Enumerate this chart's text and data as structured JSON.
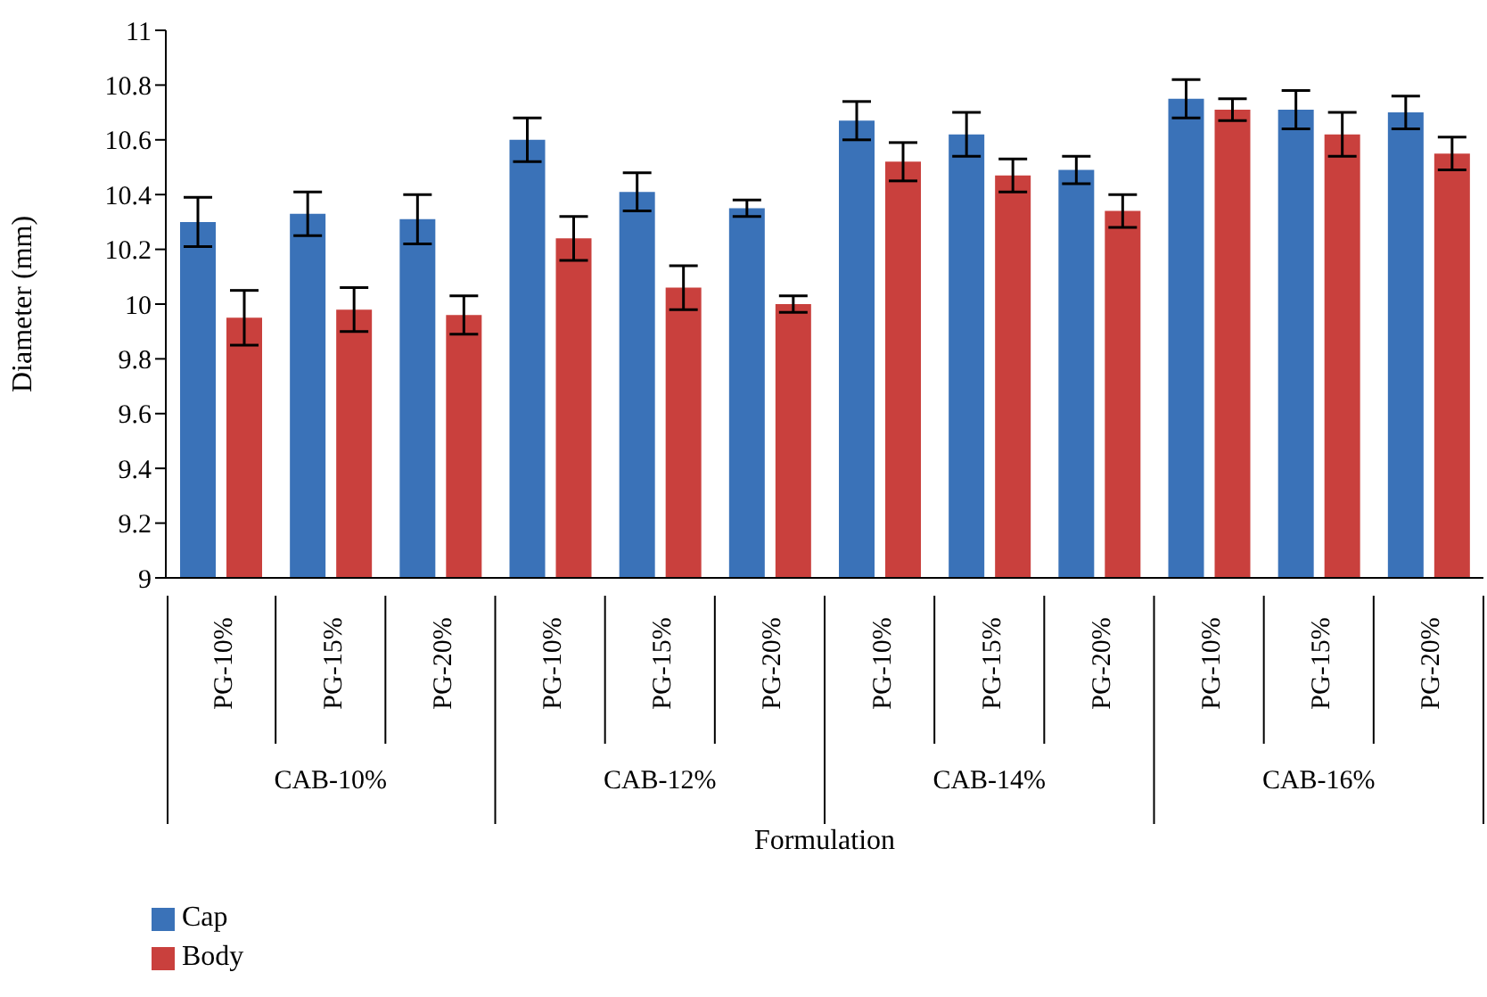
{
  "chart_data": {
    "type": "bar",
    "xlabel": "Formulation",
    "ylabel": "Diameter (mm)",
    "categories": [
      "PG-10%",
      "PG-15%",
      "PG-20%",
      "PG-10%",
      "PG-15%",
      "PG-20%",
      "PG-10%",
      "PG-15%",
      "PG-20%",
      "PG-10%",
      "PG-15%",
      "PG-20%"
    ],
    "annotations": [
      "CAB-10%",
      "CAB-12%",
      "CAB-14%",
      "CAB-16%"
    ],
    "series": [
      {
        "name": "Cap",
        "color": "#3a72b8",
        "values": [
          10.3,
          10.33,
          10.31,
          10.6,
          10.41,
          10.35,
          10.67,
          10.62,
          10.49,
          10.75,
          10.71,
          10.7
        ],
        "errors": [
          0.09,
          0.08,
          0.09,
          0.08,
          0.07,
          0.03,
          0.07,
          0.08,
          0.05,
          0.07,
          0.07,
          0.06
        ]
      },
      {
        "name": "Body",
        "color": "#c9403d",
        "values": [
          9.95,
          9.98,
          9.96,
          10.24,
          10.06,
          10.0,
          10.52,
          10.47,
          10.34,
          10.71,
          10.62,
          10.55
        ],
        "errors": [
          0.1,
          0.08,
          0.07,
          0.08,
          0.08,
          0.03,
          0.07,
          0.06,
          0.06,
          0.04,
          0.08,
          0.06
        ]
      }
    ],
    "ylim": [
      9,
      11
    ],
    "yticks": [
      9,
      9.2,
      9.4,
      9.6,
      9.8,
      10,
      10.2,
      10.4,
      10.6,
      10.8,
      11
    ],
    "grid": false,
    "legend": "bottom left"
  }
}
